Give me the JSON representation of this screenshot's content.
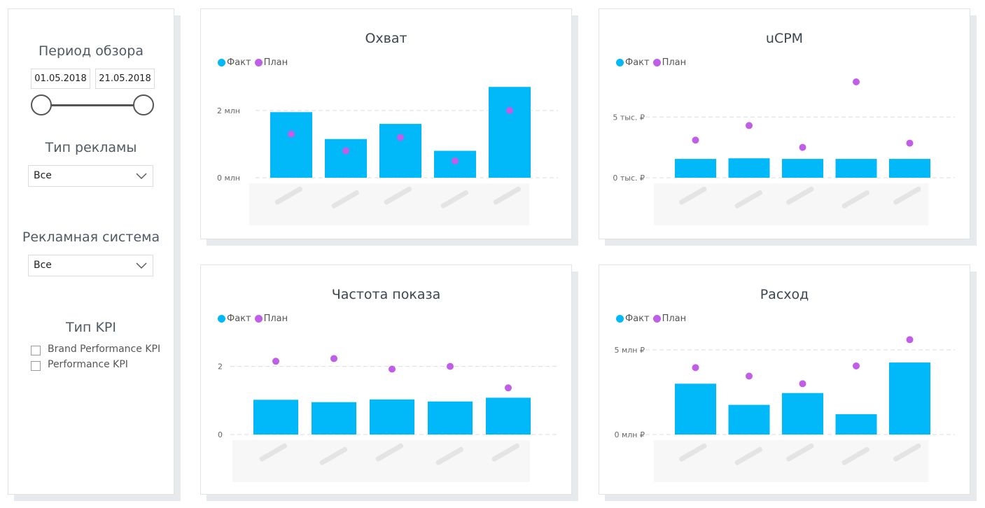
{
  "filters": {
    "period": {
      "title": "Период обзора",
      "from": "01.05.2018",
      "to": "21.05.2018"
    },
    "ad_type": {
      "title": "Тип рекламы",
      "value": "Все"
    },
    "ad_system": {
      "title": "Рекламная система",
      "value": "Все"
    },
    "kpi": {
      "title": "Тип KPI",
      "options": [
        "Brand Performance KPI",
        "Performance KPI"
      ]
    }
  },
  "legend": {
    "fact": "Факт",
    "plan": "План"
  },
  "colors": {
    "fact": "#01b8f8",
    "plan": "#c05ee8",
    "grid": "#dddddd"
  },
  "chart_data": [
    {
      "type": "bar",
      "title": "Охват",
      "categories": [
        "",
        "",
        "",
        "",
        ""
      ],
      "series": [
        {
          "name": "Факт",
          "values": [
            1.95,
            1.15,
            1.6,
            0.8,
            2.7
          ]
        },
        {
          "name": "План",
          "values": [
            1.3,
            0.8,
            1.2,
            0.5,
            2.0
          ]
        }
      ],
      "yticks": [
        {
          "v": 0,
          "label": "0 млн"
        },
        {
          "v": 2,
          "label": "2 млн"
        }
      ],
      "ylim": [
        0,
        2.85
      ]
    },
    {
      "type": "bar",
      "title": "uCPM",
      "categories": [
        "",
        "",
        "",
        "",
        ""
      ],
      "series": [
        {
          "name": "Факт",
          "values": [
            1.55,
            1.6,
            1.55,
            1.55,
            1.55
          ]
        },
        {
          "name": "План",
          "values": [
            3.1,
            4.3,
            2.5,
            7.9,
            2.85
          ]
        }
      ],
      "yticks": [
        {
          "v": 0,
          "label": "0 тыс. ₽"
        },
        {
          "v": 5,
          "label": "5 тыс. ₽"
        }
      ],
      "ylim": [
        0,
        7.9
      ]
    },
    {
      "type": "bar",
      "title": "Частота показа",
      "categories": [
        "",
        "",
        "",
        "",
        ""
      ],
      "series": [
        {
          "name": "Факт",
          "values": [
            1.02,
            0.95,
            1.03,
            0.97,
            1.08
          ]
        },
        {
          "name": "План",
          "values": [
            2.15,
            2.23,
            1.92,
            2.0,
            1.37
          ]
        }
      ],
      "yticks": [
        {
          "v": 0,
          "label": "0"
        },
        {
          "v": 2,
          "label": "2"
        }
      ],
      "ylim": [
        0,
        2.3
      ]
    },
    {
      "type": "bar",
      "title": "Расход",
      "categories": [
        "",
        "",
        "",
        "",
        ""
      ],
      "series": [
        {
          "name": "Факт",
          "values": [
            3.0,
            1.75,
            2.45,
            1.2,
            4.25
          ]
        },
        {
          "name": "План",
          "values": [
            3.95,
            3.45,
            3.0,
            4.05,
            5.6
          ]
        }
      ],
      "yticks": [
        {
          "v": 0,
          "label": "0 млн ₽"
        },
        {
          "v": 5,
          "label": "5 млн ₽"
        }
      ],
      "ylim": [
        0,
        5.7
      ]
    }
  ]
}
